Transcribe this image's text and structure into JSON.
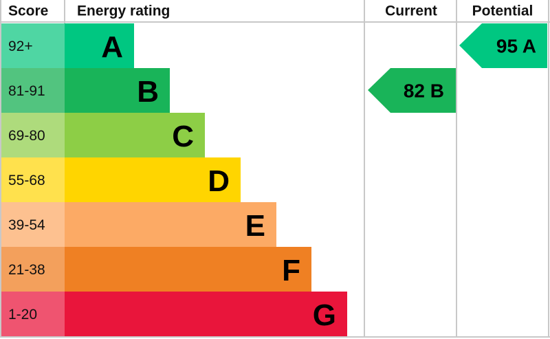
{
  "header": {
    "score": "Score",
    "energy_rating": "Energy rating",
    "current": "Current",
    "potential": "Potential"
  },
  "rows": [
    {
      "score": "92+",
      "letter": "A"
    },
    {
      "score": "81-91",
      "letter": "B"
    },
    {
      "score": "69-80",
      "letter": "C"
    },
    {
      "score": "55-68",
      "letter": "D"
    },
    {
      "score": "39-54",
      "letter": "E"
    },
    {
      "score": "21-38",
      "letter": "F"
    },
    {
      "score": "1-20",
      "letter": "G"
    }
  ],
  "current": {
    "label": "82 B"
  },
  "potential": {
    "label": "95 A"
  }
}
